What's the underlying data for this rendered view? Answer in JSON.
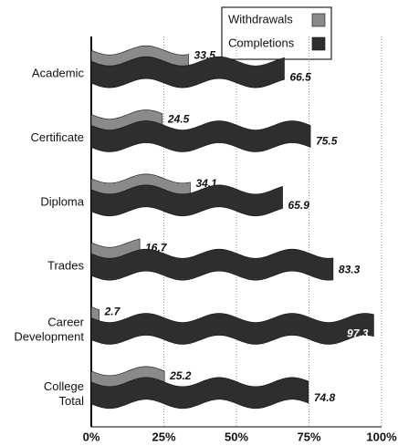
{
  "chart_data": {
    "type": "bar",
    "orientation": "horizontal",
    "categories": [
      "Academic",
      "Certificate",
      "Diploma",
      "Trades",
      "Career Development",
      "College Total"
    ],
    "series": [
      {
        "name": "Withdrawals",
        "color": "#8a8a8a",
        "values": [
          33.5,
          24.5,
          34.1,
          16.7,
          2.7,
          25.2
        ]
      },
      {
        "name": "Completions",
        "color": "#2e2e2e",
        "values": [
          66.5,
          75.5,
          65.9,
          83.3,
          97.3,
          74.8
        ]
      }
    ],
    "xlim": [
      0,
      100
    ],
    "xticks": [
      {
        "value": 0,
        "label": "0%"
      },
      {
        "value": 25,
        "label": "25%"
      },
      {
        "value": 50,
        "label": "50%"
      },
      {
        "value": 75,
        "label": "75%"
      },
      {
        "value": 100,
        "label": "100%"
      }
    ],
    "grid": true,
    "legend": "top"
  }
}
